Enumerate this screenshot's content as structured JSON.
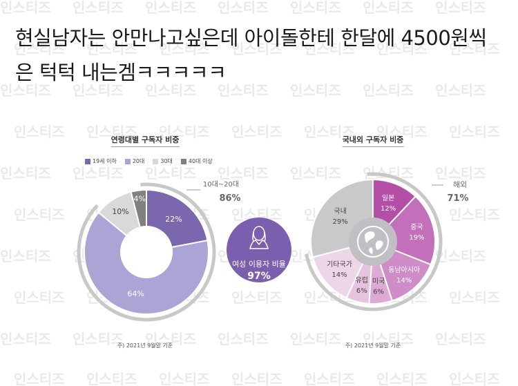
{
  "headline": {
    "line1": "현실남자는 안만나고싶은데 아이돌한테 한달에 4500원씩",
    "line2": "은 턱턱 내는겜ㅋㅋㅋㅋㅋ"
  },
  "watermark": "인스티즈",
  "chart_data": [
    {
      "type": "pie",
      "title": "연령대별 구독자 비중",
      "categories": [
        "19세 이하",
        "20대",
        "30대",
        "40대 이상"
      ],
      "values": [
        22,
        64,
        10,
        4
      ],
      "value_labels": [
        "22%",
        "64%",
        "10%",
        "4%"
      ],
      "colors": [
        "#7b67ad",
        "#aba5d6",
        "#d9d9dc",
        "#808080"
      ],
      "legend": "top-left",
      "callout": {
        "label": "10대~20대",
        "value": "86%"
      },
      "footnote": "주) 2021년 9월말 기준"
    },
    {
      "type": "pie",
      "title": "국내외 구독자 비중",
      "categories": [
        "일본",
        "중국",
        "동남아시아",
        "미국",
        "유럽",
        "기타국가",
        "국내"
      ],
      "values": [
        12,
        19,
        14,
        6,
        6,
        14,
        29
      ],
      "value_labels": [
        "12%",
        "19%",
        "14%",
        "6%",
        "6%",
        "14%",
        "29%"
      ],
      "colors": [
        "#b44fa8",
        "#c36fba",
        "#cf8cc7",
        "#dcaad4",
        "#e6c3df",
        "#ecd6e8",
        "#c9c9cc"
      ],
      "callout": {
        "label": "해외",
        "value": "71%"
      },
      "footnote": "주) 2021년 9월말 기준"
    }
  ],
  "badge": {
    "label": "여성 이용자 비율",
    "value": "97%",
    "color": "#7b5fae"
  }
}
